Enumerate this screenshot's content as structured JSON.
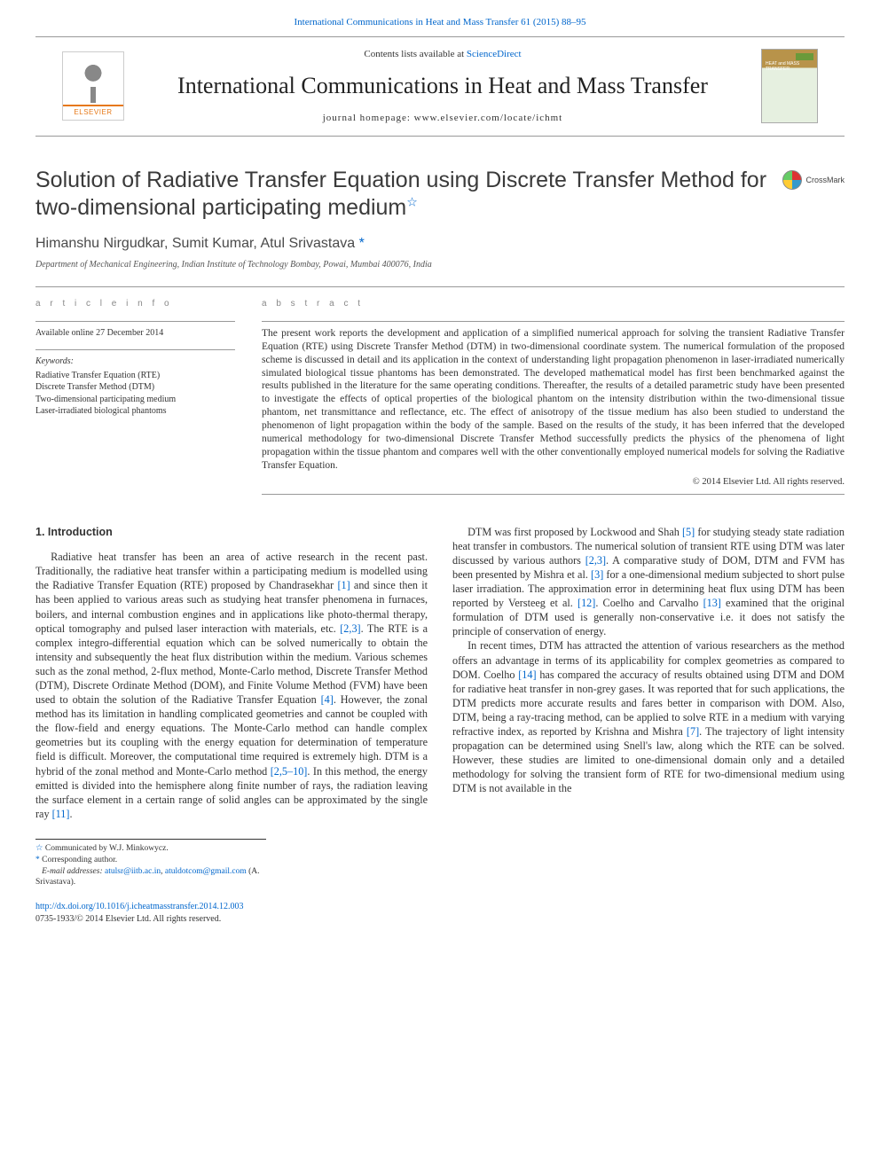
{
  "header": {
    "citation_link_prefix": "International Communications in Heat and Mass Transfer 61 (2015) 88–95",
    "contents_line_pre": "Contents lists available at ",
    "contents_link": "ScienceDirect",
    "journal_name": "International Communications in Heat and Mass Transfer",
    "homepage_line": "journal homepage: www.elsevier.com/locate/ichmt",
    "publisher": "ELSEVIER",
    "cover_text": "HEAT and MASS TRANSFER"
  },
  "crossmark": "CrossMark",
  "article": {
    "title": "Solution of Radiative Transfer Equation using Discrete Transfer Method for two-dimensional participating medium",
    "title_star": "☆",
    "authors": "Himanshu Nirgudkar, Sumit Kumar, Atul Srivastava ",
    "corr_mark": "*",
    "affiliation": "Department of Mechanical Engineering, Indian Institute of Technology Bombay, Powai, Mumbai 400076, India"
  },
  "info": {
    "head": "a r t i c l e   i n f o",
    "avail": "Available online 27 December 2014",
    "kw_label": "Keywords:",
    "keywords": [
      "Radiative Transfer Equation (RTE)",
      "Discrete Transfer Method (DTM)",
      "Two-dimensional participating medium",
      "Laser-irradiated biological phantoms"
    ]
  },
  "abstract": {
    "head": "a b s t r a c t",
    "text": "The present work reports the development and application of a simplified numerical approach for solving the transient Radiative Transfer Equation (RTE) using Discrete Transfer Method (DTM) in two-dimensional coordinate system. The numerical formulation of the proposed scheme is discussed in detail and its application in the context of understanding light propagation phenomenon in laser-irradiated numerically simulated biological tissue phantoms has been demonstrated. The developed mathematical model has first been benchmarked against the results published in the literature for the same operating conditions. Thereafter, the results of a detailed parametric study have been presented to investigate the effects of optical properties of the biological phantom on the intensity distribution within the two-dimensional tissue phantom, net transmittance and reflectance, etc. The effect of anisotropy of the tissue medium has also been studied to understand the phenomenon of light propagation within the body of the sample. Based on the results of the study, it has been inferred that the developed numerical methodology for two-dimensional Discrete Transfer Method successfully predicts the physics of the phenomena of light propagation within the tissue phantom and compares well with the other conventionally employed numerical models for solving the Radiative Transfer Equation.",
    "copyright": "© 2014 Elsevier Ltd. All rights reserved."
  },
  "body": {
    "h_intro": "1. Introduction",
    "p1a": "Radiative heat transfer has been an area of active research in the recent past. Traditionally, the radiative heat transfer within a participating medium is modelled using the Radiative Transfer Equation (RTE) proposed by Chandrasekhar ",
    "r1": "[1]",
    "p1b": " and since then it has been applied to various areas such as studying heat transfer phenomena in furnaces, boilers, and internal combustion engines and in applications like photo-thermal therapy, optical tomography and pulsed laser interaction with materials, etc. ",
    "r23a": "[2,3]",
    "p1c": ". The RTE is a complex integro-differential equation which can be solved numerically to obtain the intensity and subsequently the heat flux distribution within the medium. Various schemes such as the zonal method, 2-flux method, Monte-Carlo method, Discrete Transfer Method (DTM), Discrete Ordinate Method (DOM), and Finite Volume Method (FVM) have been used to obtain the solution of the Radiative Transfer Equation ",
    "r4": "[4]",
    "p1d": ". However, the zonal method has its limitation in handling complicated geometries and cannot be coupled with the flow-field and energy equations. The Monte-Carlo method can handle complex geometries but its coupling with the energy equation for determination of temperature field is difficult. Moreover, the computational time required is extremely high. DTM is a hybrid of the zonal method and Monte-Carlo method ",
    "r2510": "[2,5–10]",
    "p1e": ". In this method, the energy emitted is divided into the hemisphere along finite number of rays, the radiation leaving the surface element in a certain range of solid angles can be approximated by the single ray ",
    "r11": "[11]",
    "p1f": ".",
    "p2a": "DTM was first proposed by Lockwood and Shah ",
    "r5": "[5]",
    "p2b": " for studying steady state radiation heat transfer in combustors. The numerical solution of transient RTE using DTM was later discussed by various authors ",
    "r23b": "[2,3]",
    "p2c": ". A comparative study of DOM, DTM and FVM has been presented by Mishra et al. ",
    "r3": "[3]",
    "p2d": " for a one-dimensional medium subjected to short pulse laser irradiation. The approximation error in determining heat flux using DTM has been reported by Versteeg et al. ",
    "r12": "[12]",
    "p2e": ". Coelho and Carvalho ",
    "r13": "[13]",
    "p2f": " examined that the original formulation of DTM used is generally non-conservative i.e. it does not satisfy the principle of conservation of energy.",
    "p3a": "In recent times, DTM has attracted the attention of various researchers as the method offers an advantage in terms of its applicability for complex geometries as compared to DOM. Coelho ",
    "r14": "[14]",
    "p3b": " has compared the accuracy of results obtained using DTM and DOM for radiative heat transfer in non-grey gases. It was reported that for such applications, the DTM predicts more accurate results and fares better in comparison with DOM. Also, DTM, being a ray-tracing method, can be applied to solve RTE in a medium with varying refractive index, as reported by Krishna and Mishra ",
    "r7": "[7]",
    "p3c": ". The trajectory of light intensity propagation can be determined using Snell's law, along which the RTE can be solved. However, these studies are limited to one-dimensional domain only and a detailed methodology for solving the transient form of RTE for two-dimensional medium using DTM is not available in the"
  },
  "footnotes": {
    "comm_star": "☆",
    "comm": " Communicated by W.J. Minkowycz.",
    "corr_star": "*",
    "corr": " Corresponding author.",
    "email_label": "E-mail addresses: ",
    "email1": "atulsr@iitb.ac.in",
    "email_sep": ", ",
    "email2": "atuldotcom@gmail.com",
    "email_tail": " (A. Srivastava)."
  },
  "doi": {
    "link": "http://dx.doi.org/10.1016/j.icheatmasstransfer.2014.12.003",
    "line2": "0735-1933/© 2014 Elsevier Ltd. All rights reserved."
  },
  "colors": {
    "link": "#0066cc",
    "orange": "#e67817",
    "rule": "#999999",
    "text": "#333333"
  }
}
